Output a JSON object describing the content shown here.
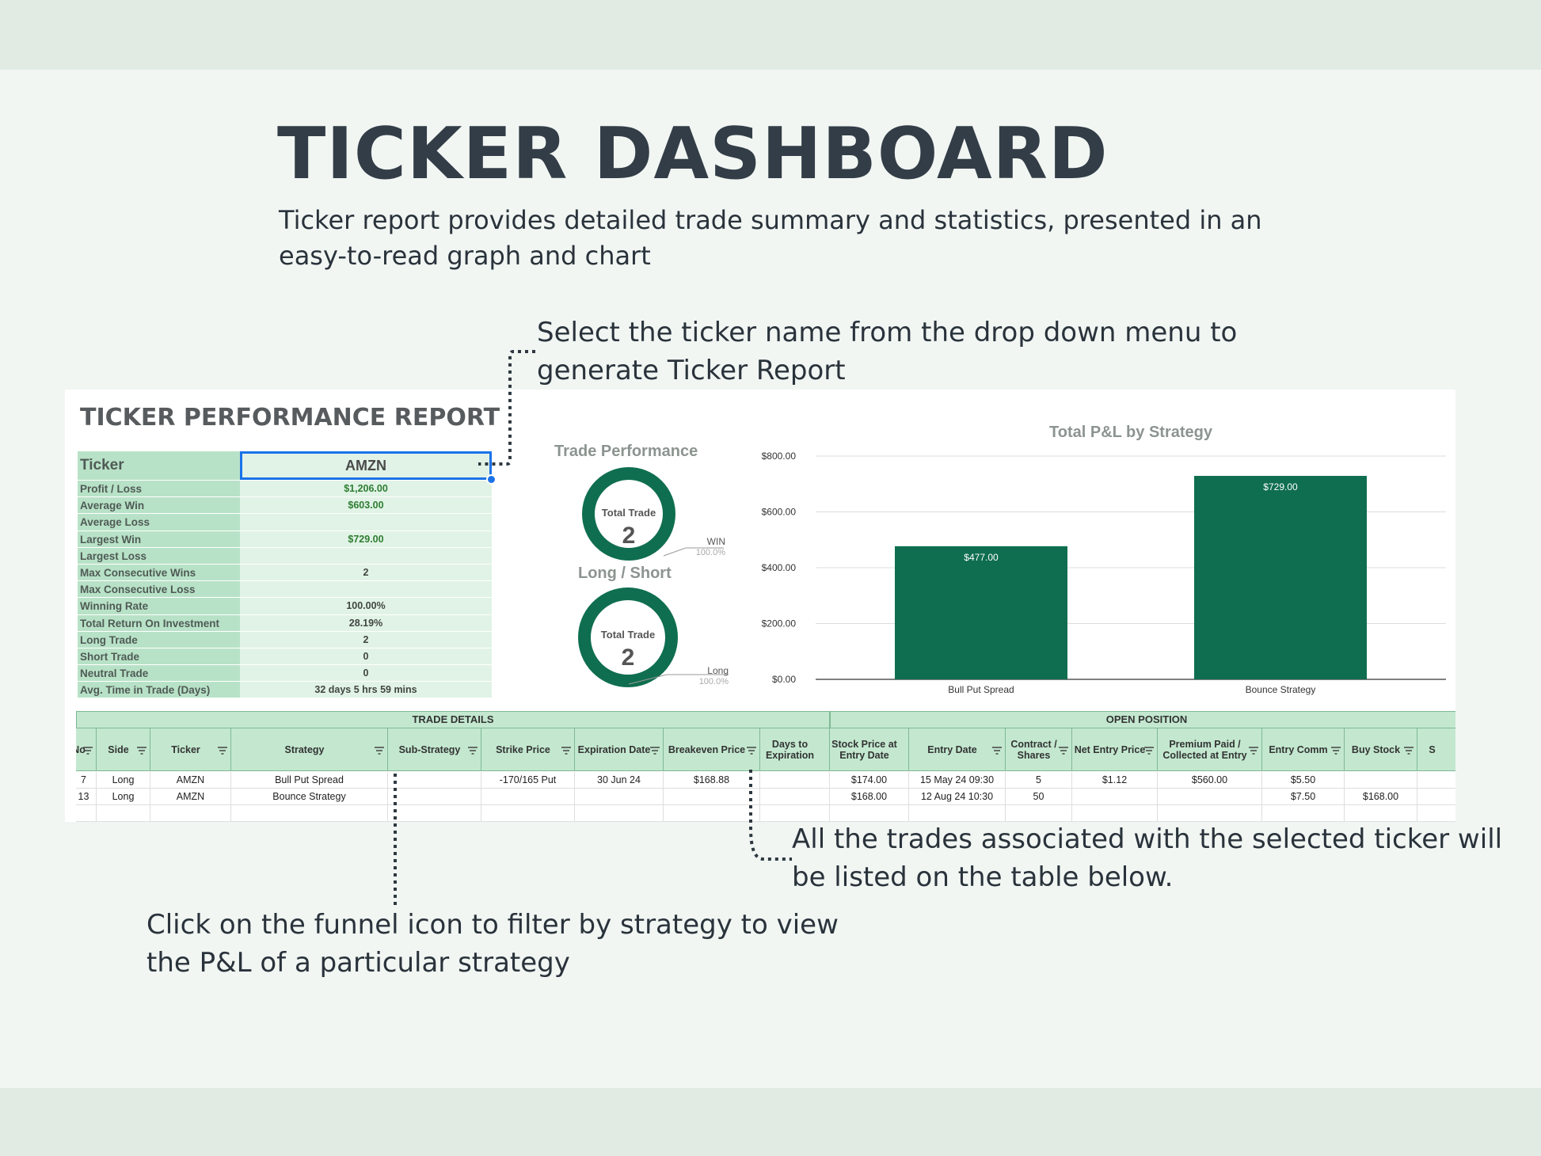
{
  "page": {
    "title": "TICKER DASHBOARD",
    "subtitle": "Ticker report provides detailed trade summary and statistics, presented in an easy-to-read graph and chart"
  },
  "notes": {
    "select_ticker": "Select the ticker name from the drop down menu to generate Ticker Report",
    "trades_listed": "All the trades associated with the selected ticker will be listed on the table below.",
    "funnel_filter": "Click on the funnel icon to filter by strategy to view the P&L of a particular strategy"
  },
  "report": {
    "title": "TICKER PERFORMANCE REPORT",
    "ticker_label": "Ticker",
    "ticker_value": "AMZN",
    "stats": [
      {
        "label": "Profit / Loss",
        "value": "$1,206.00",
        "green": true
      },
      {
        "label": "Average Win",
        "value": "$603.00",
        "green": true
      },
      {
        "label": "Average Loss",
        "value": "",
        "green": false
      },
      {
        "label": "Largest Win",
        "value": "$729.00",
        "green": true
      },
      {
        "label": "Largest Loss",
        "value": "",
        "green": false
      },
      {
        "label": "Max Consecutive Wins",
        "value": "2",
        "green": false
      },
      {
        "label": "Max Consecutive Loss",
        "value": "",
        "green": false
      },
      {
        "label": "Winning Rate",
        "value": "100.00%",
        "green": false
      },
      {
        "label": "Total Return On Investment",
        "value": "28.19%",
        "green": false
      },
      {
        "label": "Long Trade",
        "value": "2",
        "green": false
      },
      {
        "label": "Short Trade",
        "value": "0",
        "green": false
      },
      {
        "label": "Neutral Trade",
        "value": "0",
        "green": false
      },
      {
        "label": "Avg. Time in Trade (Days)",
        "value": "32 days 5 hrs 59 mins",
        "green": false
      }
    ]
  },
  "donuts": [
    {
      "title": "Trade Performance",
      "center_label": "Total Trade",
      "center_value": "2",
      "legend": "WIN",
      "percent": "100.0%",
      "fraction": 1.0,
      "color": "#0f6e4f"
    },
    {
      "title": "Long  / Short",
      "center_label": "Total Trade",
      "center_value": "2",
      "legend": "Long",
      "percent": "100.0%",
      "fraction": 1.0,
      "color": "#0f6e4f"
    }
  ],
  "chart_data": {
    "type": "bar",
    "title": "Total P&L by Strategy",
    "categories": [
      "Bull Put Spread",
      "Bounce Strategy"
    ],
    "values": [
      477,
      729
    ],
    "value_labels": [
      "$477.00",
      "$729.00"
    ],
    "ylim": [
      0,
      800
    ],
    "yticks": [
      0,
      200,
      400,
      600,
      800
    ],
    "ytick_labels": [
      "$0.00",
      "$200.00",
      "$400.00",
      "$600.00",
      "$800.00"
    ],
    "grid": true,
    "color": "#0f6e4f"
  },
  "table": {
    "groups": [
      "TRADE DETAILS",
      "OPEN POSITION"
    ],
    "headers": [
      "No",
      "Side",
      "Ticker",
      "Strategy",
      "Sub-Strategy",
      "Strike Price",
      "Expiration Date",
      "Breakeven Price",
      "Days to Expiration",
      "Stock Price at Entry Date",
      "Entry Date",
      "Contract / Shares",
      "Net Entry Price",
      "Premium Paid / Collected at Entry",
      "Entry Comm",
      "Buy Stock",
      "S"
    ],
    "rows": [
      [
        "7",
        "Long",
        "AMZN",
        "Bull Put Spread",
        "",
        "-170/165 Put",
        "30 Jun 24",
        "$168.88",
        "",
        "$174.00",
        "15 May 24 09:30",
        "5",
        "$1.12",
        "$560.00",
        "$5.50",
        "",
        ""
      ],
      [
        "13",
        "Long",
        "AMZN",
        "Bounce Strategy",
        "",
        "",
        "",
        "",
        "",
        "$168.00",
        "12 Aug 24 10:30",
        "50",
        "",
        "",
        "$7.50",
        "$168.00",
        ""
      ],
      [
        "",
        "",
        "",
        "",
        "",
        "",
        "",
        "",
        "",
        "",
        "",
        "",
        "",
        "",
        "",
        "",
        ""
      ]
    ]
  }
}
